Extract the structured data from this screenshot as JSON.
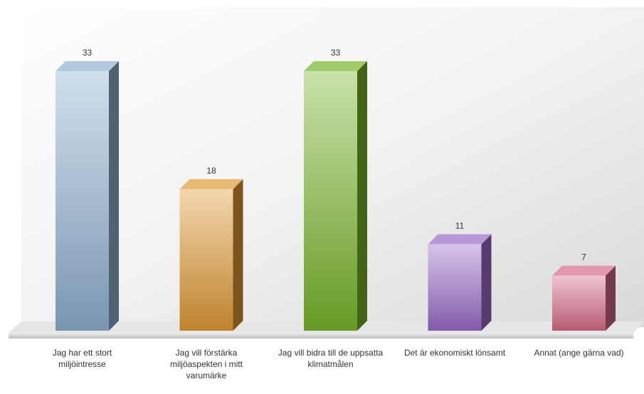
{
  "chart_data": {
    "type": "bar3d",
    "categories": [
      "Jag har ett stort miljöintresse",
      "Jag vill förstärka miljöaspekten i mitt varumärke",
      "Jag vill bidra till de uppsatta klimatmålen",
      "Det är ekonomiskt lönsamt",
      "Annat (ange gärna vad)"
    ],
    "values": [
      33,
      18,
      33,
      11,
      7
    ],
    "colors": [
      "#8fb0d0",
      "#e09a35",
      "#78b52a",
      "#9a6bc8",
      "#d76b86"
    ]
  }
}
